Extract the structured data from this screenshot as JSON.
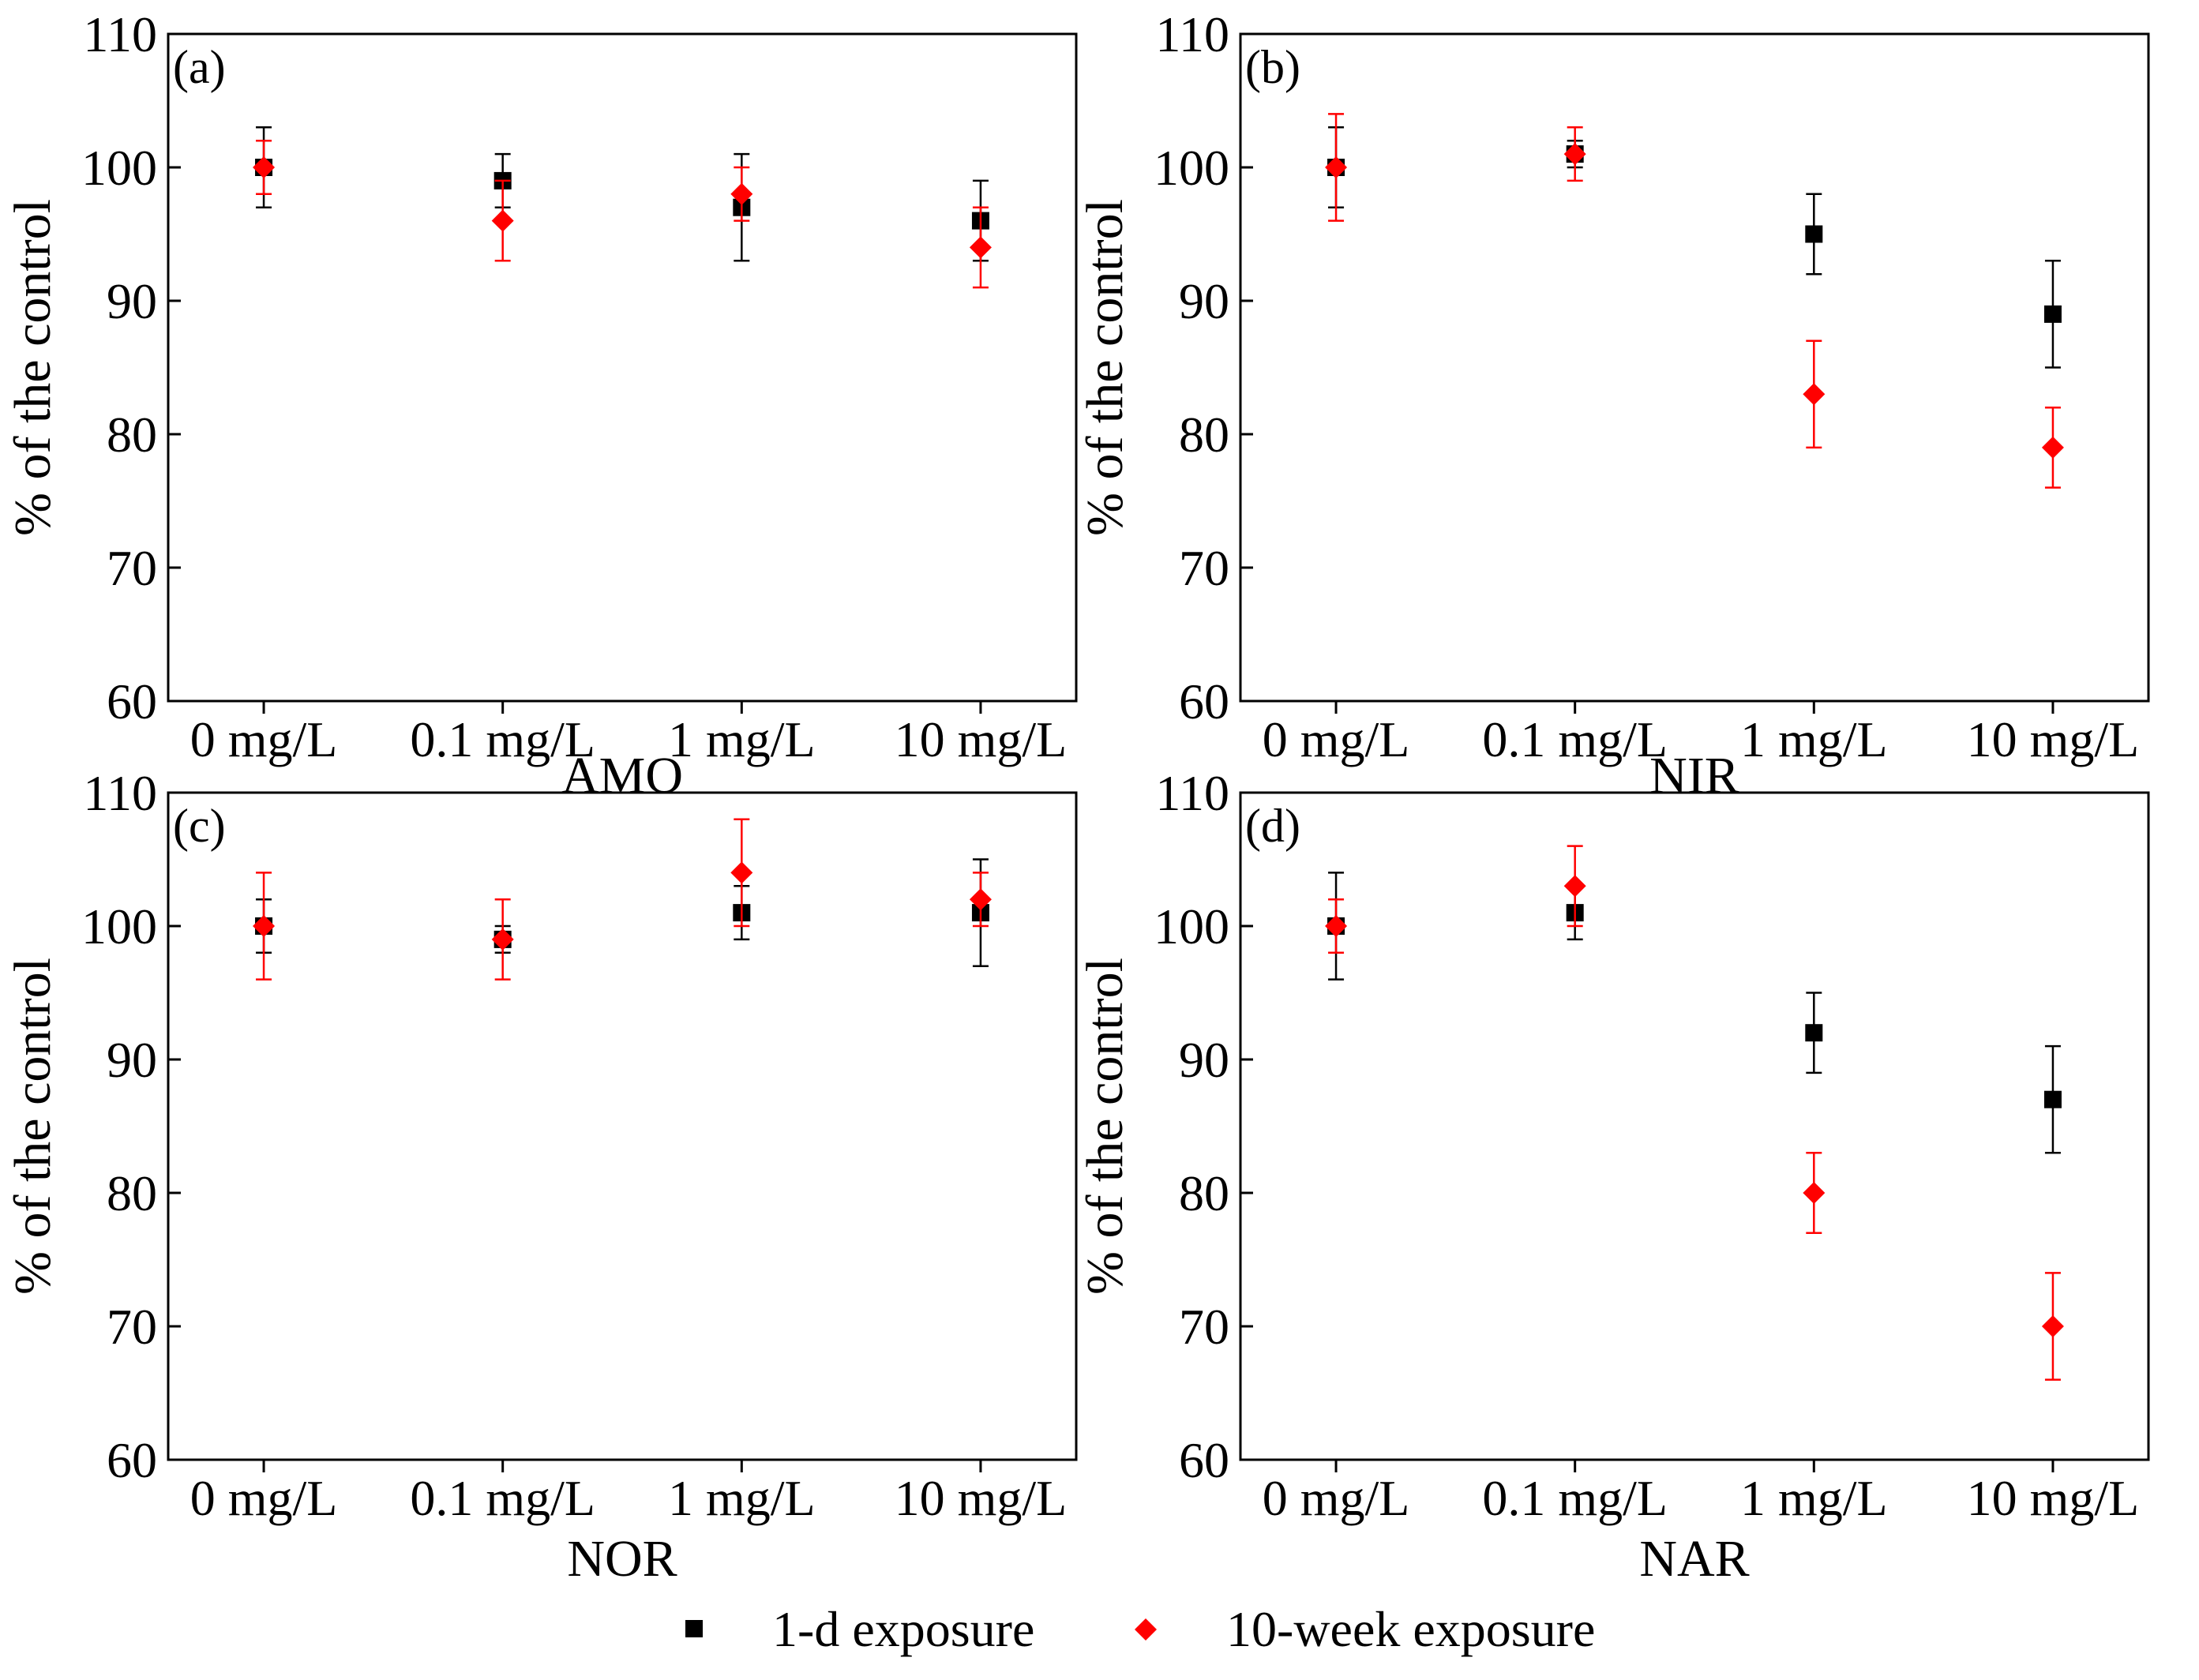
{
  "legend": [
    {
      "name": "1-d exposure",
      "marker": "square",
      "color": "#000000"
    },
    {
      "name": "10-week exposure",
      "marker": "diamond",
      "color": "#ff0000"
    }
  ],
  "chart_data": [
    {
      "type": "scatter",
      "panel_label": "(a)",
      "xlabel": "AMO",
      "ylabel": "% of the control",
      "categories": [
        "0 mg/L",
        "0.1 mg/L",
        "1 mg/L",
        "10 mg/L"
      ],
      "ylim": [
        60,
        110
      ],
      "yticks": [
        60,
        70,
        80,
        90,
        100,
        110
      ],
      "series": [
        {
          "name": "1-d exposure",
          "values": [
            100,
            99,
            97,
            96
          ],
          "errors": [
            3,
            2,
            4,
            3
          ]
        },
        {
          "name": "10-week exposure",
          "values": [
            100,
            96,
            98,
            94
          ],
          "errors": [
            2,
            3,
            2,
            3
          ]
        }
      ]
    },
    {
      "type": "scatter",
      "panel_label": "(b)",
      "xlabel": "NIR",
      "ylabel": "% of the control",
      "categories": [
        "0 mg/L",
        "0.1 mg/L",
        "1 mg/L",
        "10 mg/L"
      ],
      "ylim": [
        60,
        110
      ],
      "yticks": [
        60,
        70,
        80,
        90,
        100,
        110
      ],
      "series": [
        {
          "name": "1-d exposure",
          "values": [
            100,
            101,
            95,
            89
          ],
          "errors": [
            3,
            1,
            3,
            4
          ]
        },
        {
          "name": "10-week exposure",
          "values": [
            100,
            101,
            83,
            79
          ],
          "errors": [
            4,
            2,
            4,
            3
          ]
        }
      ]
    },
    {
      "type": "scatter",
      "panel_label": "(c)",
      "xlabel": "NOR",
      "ylabel": "% of the control",
      "categories": [
        "0 mg/L",
        "0.1 mg/L",
        "1 mg/L",
        "10 mg/L"
      ],
      "ylim": [
        60,
        110
      ],
      "yticks": [
        60,
        70,
        80,
        90,
        100,
        110
      ],
      "series": [
        {
          "name": "1-d exposure",
          "values": [
            100,
            99,
            101,
            101
          ],
          "errors": [
            2,
            1,
            2,
            4
          ]
        },
        {
          "name": "10-week exposure",
          "values": [
            100,
            99,
            104,
            102
          ],
          "errors": [
            4,
            3,
            4,
            2
          ]
        }
      ]
    },
    {
      "type": "scatter",
      "panel_label": "(d)",
      "xlabel": "NAR",
      "ylabel": "% of the control",
      "categories": [
        "0 mg/L",
        "0.1 mg/L",
        "1 mg/L",
        "10 mg/L"
      ],
      "ylim": [
        60,
        110
      ],
      "yticks": [
        60,
        70,
        80,
        90,
        100,
        110
      ],
      "series": [
        {
          "name": "1-d exposure",
          "values": [
            100,
            101,
            92,
            87
          ],
          "errors": [
            4,
            2,
            3,
            4
          ]
        },
        {
          "name": "10-week exposure",
          "values": [
            100,
            103,
            80,
            70
          ],
          "errors": [
            2,
            3,
            3,
            4
          ]
        }
      ]
    }
  ]
}
